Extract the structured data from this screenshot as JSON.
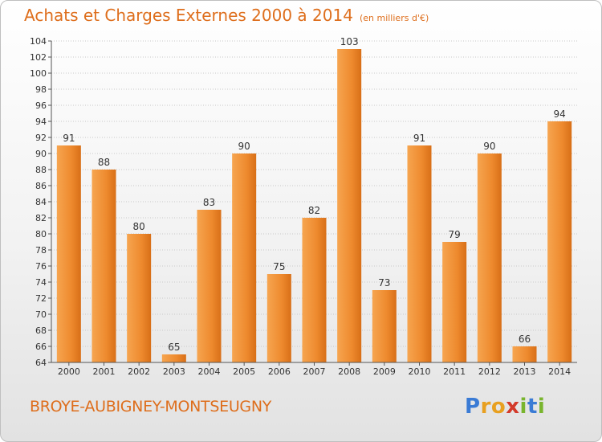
{
  "header": {
    "title": "Achats et Charges Externes 2000 à 2014",
    "unit": "(en milliers d'€)"
  },
  "commune": "BROYE-AUBIGNEY-MONTSEUGNY",
  "logo": {
    "letters": [
      "P",
      "r",
      "o",
      "x",
      "i",
      "t",
      "i"
    ],
    "colors": [
      "#3a7bd5",
      "#e8a020",
      "#e8a020",
      "#d33a2a",
      "#79b52e",
      "#3a7bd5",
      "#79b52e"
    ]
  },
  "chart_data": {
    "type": "bar",
    "title": "Achats et Charges Externes 2000 à 2014",
    "subtitle": "(en milliers d'€)",
    "categories": [
      "2000",
      "2001",
      "2002",
      "2003",
      "2004",
      "2005",
      "2006",
      "2007",
      "2008",
      "2009",
      "2010",
      "2011",
      "2012",
      "2013",
      "2014"
    ],
    "values": [
      91,
      88,
      80,
      65,
      83,
      90,
      75,
      82,
      103,
      73,
      91,
      79,
      90,
      66,
      94
    ],
    "ylim": [
      64,
      104
    ],
    "yticks": [
      64,
      66,
      68,
      70,
      72,
      74,
      76,
      78,
      80,
      82,
      84,
      86,
      88,
      90,
      92,
      94,
      96,
      98,
      100,
      102,
      104
    ],
    "grid": true,
    "bar_color": "#f0923a",
    "xlabel": "",
    "ylabel": ""
  }
}
